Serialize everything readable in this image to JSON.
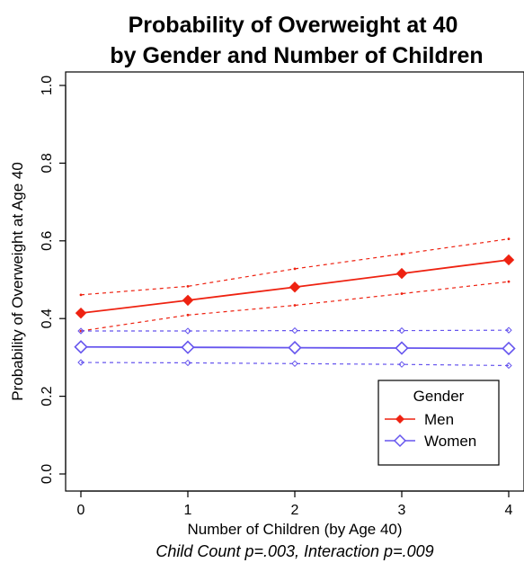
{
  "chart_data": {
    "type": "line",
    "title_line1": "Probability of Overweight at 40",
    "title_line2": "by Gender and Number of Children",
    "xlabel": "Number of Children (by Age 40)",
    "ylabel": "Probability of Overweight at Age 40",
    "subtitle": "Child Count p=.003, Interaction p=.009",
    "x": [
      0,
      1,
      2,
      3,
      4
    ],
    "xticks": [
      "0",
      "1",
      "2",
      "3",
      "4"
    ],
    "yticks": [
      "0.0",
      "0.2",
      "0.4",
      "0.6",
      "0.8",
      "1.0"
    ],
    "xlim": [
      0,
      4
    ],
    "ylim": [
      0,
      1
    ],
    "legend_title": "Gender",
    "legend_position": "bottom-right",
    "series": [
      {
        "name": "Men",
        "color": "#ee2211",
        "marker": "filled-diamond",
        "values": [
          0.414,
          0.447,
          0.481,
          0.516,
          0.551
        ],
        "upper": [
          0.461,
          0.483,
          0.528,
          0.566,
          0.605
        ],
        "lower": [
          0.368,
          0.409,
          0.434,
          0.464,
          0.495
        ]
      },
      {
        "name": "Women",
        "color": "#6655ee",
        "marker": "open-diamond",
        "values": [
          0.327,
          0.326,
          0.325,
          0.324,
          0.323
        ],
        "upper": [
          0.368,
          0.368,
          0.369,
          0.369,
          0.37
        ],
        "lower": [
          0.287,
          0.286,
          0.284,
          0.282,
          0.279
        ]
      }
    ]
  }
}
